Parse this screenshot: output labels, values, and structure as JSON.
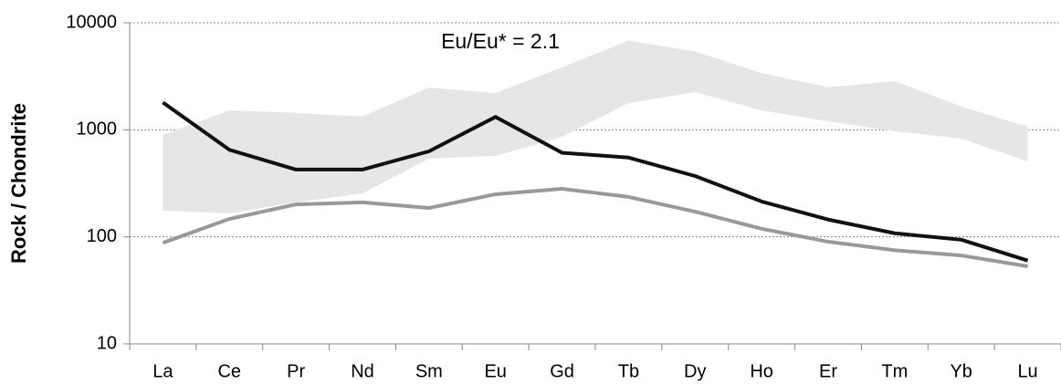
{
  "chart_data": {
    "type": "line",
    "y_label": "Rock / Chondrite",
    "annotation": "Eu/Eu* = 2.1",
    "categories": [
      "La",
      "Ce",
      "Pr",
      "Nd",
      "Sm",
      "Eu",
      "Gd",
      "Tb",
      "Dy",
      "Ho",
      "Er",
      "Tm",
      "Yb",
      "Lu"
    ],
    "band": {
      "color": "#e6e6e6",
      "high": [
        900,
        1520,
        1440,
        1330,
        2490,
        2200,
        3840,
        6800,
        5400,
        3400,
        2500,
        2850,
        1650,
        1070
      ],
      "low": [
        176,
        166,
        210,
        255,
        540,
        570,
        860,
        1780,
        2250,
        1520,
        1200,
        970,
        830,
        507
      ]
    },
    "series": [
      {
        "color": "#111111",
        "values": [
          1800,
          650,
          425,
          425,
          630,
          1320,
          610,
          550,
          370,
          214,
          145,
          108,
          94,
          60
        ]
      },
      {
        "color": "#999999",
        "values": [
          88,
          147,
          201,
          210,
          186,
          250,
          281,
          236,
          172,
          119,
          90,
          75,
          67,
          53
        ]
      }
    ],
    "y_scale": "log",
    "ylim": [
      10,
      10000
    ],
    "yticks": [
      10,
      100,
      1000,
      10000
    ],
    "grid": true
  }
}
